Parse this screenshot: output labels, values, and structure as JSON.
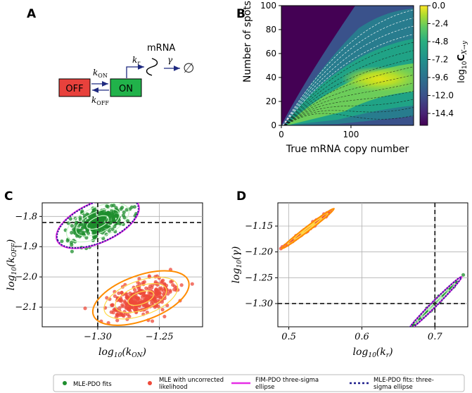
{
  "panels": {
    "A": "A",
    "B": "B",
    "C": "C",
    "D": "D"
  },
  "colors": {
    "off_box": "#e8413c",
    "on_box": "#21b24a",
    "arrow": "#1f2a80",
    "green_fit": "#1e8e2e",
    "red_fit": "#ee4a3a",
    "magenta": "#e62ee6",
    "navy": "#1e1e8c",
    "dashed": "#222222"
  },
  "schematic": {
    "off_label": "OFF",
    "on_label": "ON",
    "k_on": "k",
    "k_on_sub": "ON",
    "k_off": "k",
    "k_off_sub": "OFF",
    "k_r": "k",
    "k_r_sub": "r",
    "mrna": "mRNA",
    "gamma": "γ",
    "empty_set": "∅"
  },
  "chart_data": [
    {
      "panel": "B",
      "type": "heatmap",
      "title": "",
      "xlabel": "True mRNA copy number",
      "ylabel": "Number of spots",
      "xlim": [
        0,
        190
      ],
      "ylim": [
        0,
        100
      ],
      "xticks": [
        0,
        100
      ],
      "yticks": [
        0,
        20,
        40,
        60,
        80,
        100
      ],
      "colorbar": {
        "label_main": "log",
        "label_sub": "10",
        "label_rest": "C",
        "label_sub2": "X→y",
        "range": [
          -16,
          0
        ],
        "ticks": [
          "0.0",
          "-2.4",
          "-4.8",
          "-7.2",
          "-9.6",
          "-12.0",
          "-14.4"
        ],
        "tick_values": [
          0.0,
          -2.4,
          -4.8,
          -7.2,
          -9.6,
          -12.0,
          -14.4
        ]
      }
    },
    {
      "panel": "C",
      "type": "scatter",
      "xlabel": "log",
      "xlabel_sub": "10",
      "xlabel_arg": "(k",
      "xlabel_argsub": "ON",
      "ylabel": "log",
      "ylabel_sub": "10",
      "ylabel_arg": "(k",
      "ylabel_argsub": "OFF",
      "xlim": [
        -1.345,
        -1.215
      ],
      "ylim": [
        -2.165,
        -1.755
      ],
      "xticks": [
        -1.3,
        -1.25
      ],
      "xtick_labels": [
        "−1.30",
        "−1.25"
      ],
      "yticks": [
        -1.8,
        -1.9,
        -2.0,
        -2.1
      ],
      "ytick_labels": [
        "−1.8",
        "−1.9",
        "−2.0",
        "−2.1"
      ],
      "true_x": -1.3,
      "true_y": -1.82,
      "series": [
        {
          "name": "MLE-PDO fits",
          "center": [
            -1.3,
            -1.82
          ],
          "spread": [
            0.011,
            0.028
          ],
          "corr": 0.55,
          "count": 320
        },
        {
          "name": "MLE with uncorrected likelihood",
          "center": [
            -1.265,
            -2.07
          ],
          "spread": [
            0.013,
            0.03
          ],
          "corr": 0.5,
          "count": 320
        }
      ]
    },
    {
      "panel": "D",
      "type": "scatter",
      "xlabel": "log",
      "xlabel_sub": "10",
      "xlabel_arg": "(k",
      "xlabel_argsub": "r",
      "ylabel": "log",
      "ylabel_sub": "10",
      "ylabel_arg": "(γ)",
      "xlim": [
        0.485,
        0.745
      ],
      "ylim": [
        -1.345,
        -1.105
      ],
      "xticks": [
        0.5,
        0.6,
        0.7
      ],
      "xtick_labels": [
        "0.5",
        "0.6",
        "0.7"
      ],
      "yticks": [
        -1.15,
        -1.2,
        -1.25,
        -1.3
      ],
      "ytick_labels": [
        "−1.15",
        "−1.20",
        "−1.25",
        "−1.30"
      ],
      "true_x": 0.7,
      "true_y": -1.3,
      "series": [
        {
          "name": "MLE-PDO fits",
          "center": [
            0.7,
            -1.3
          ],
          "spread": [
            0.012,
            0.017
          ],
          "corr": 0.99,
          "count": 250
        },
        {
          "name": "MLE with uncorrected likelihood",
          "center": [
            0.526,
            -1.155
          ],
          "spread": [
            0.012,
            0.013
          ],
          "corr": 0.99,
          "count": 250
        }
      ]
    }
  ],
  "legend": [
    {
      "label_line1": "MLE-PDO fits",
      "label_line2": ""
    },
    {
      "label_line1": "MLE with uncorrected",
      "label_line2": "likelihood"
    },
    {
      "label_line1": "FIM-PDO three-sigma",
      "label_line2": "ellipse"
    },
    {
      "label_line1": "MLE-PDO fits: three-",
      "label_line2": "sigma ellipse"
    }
  ]
}
